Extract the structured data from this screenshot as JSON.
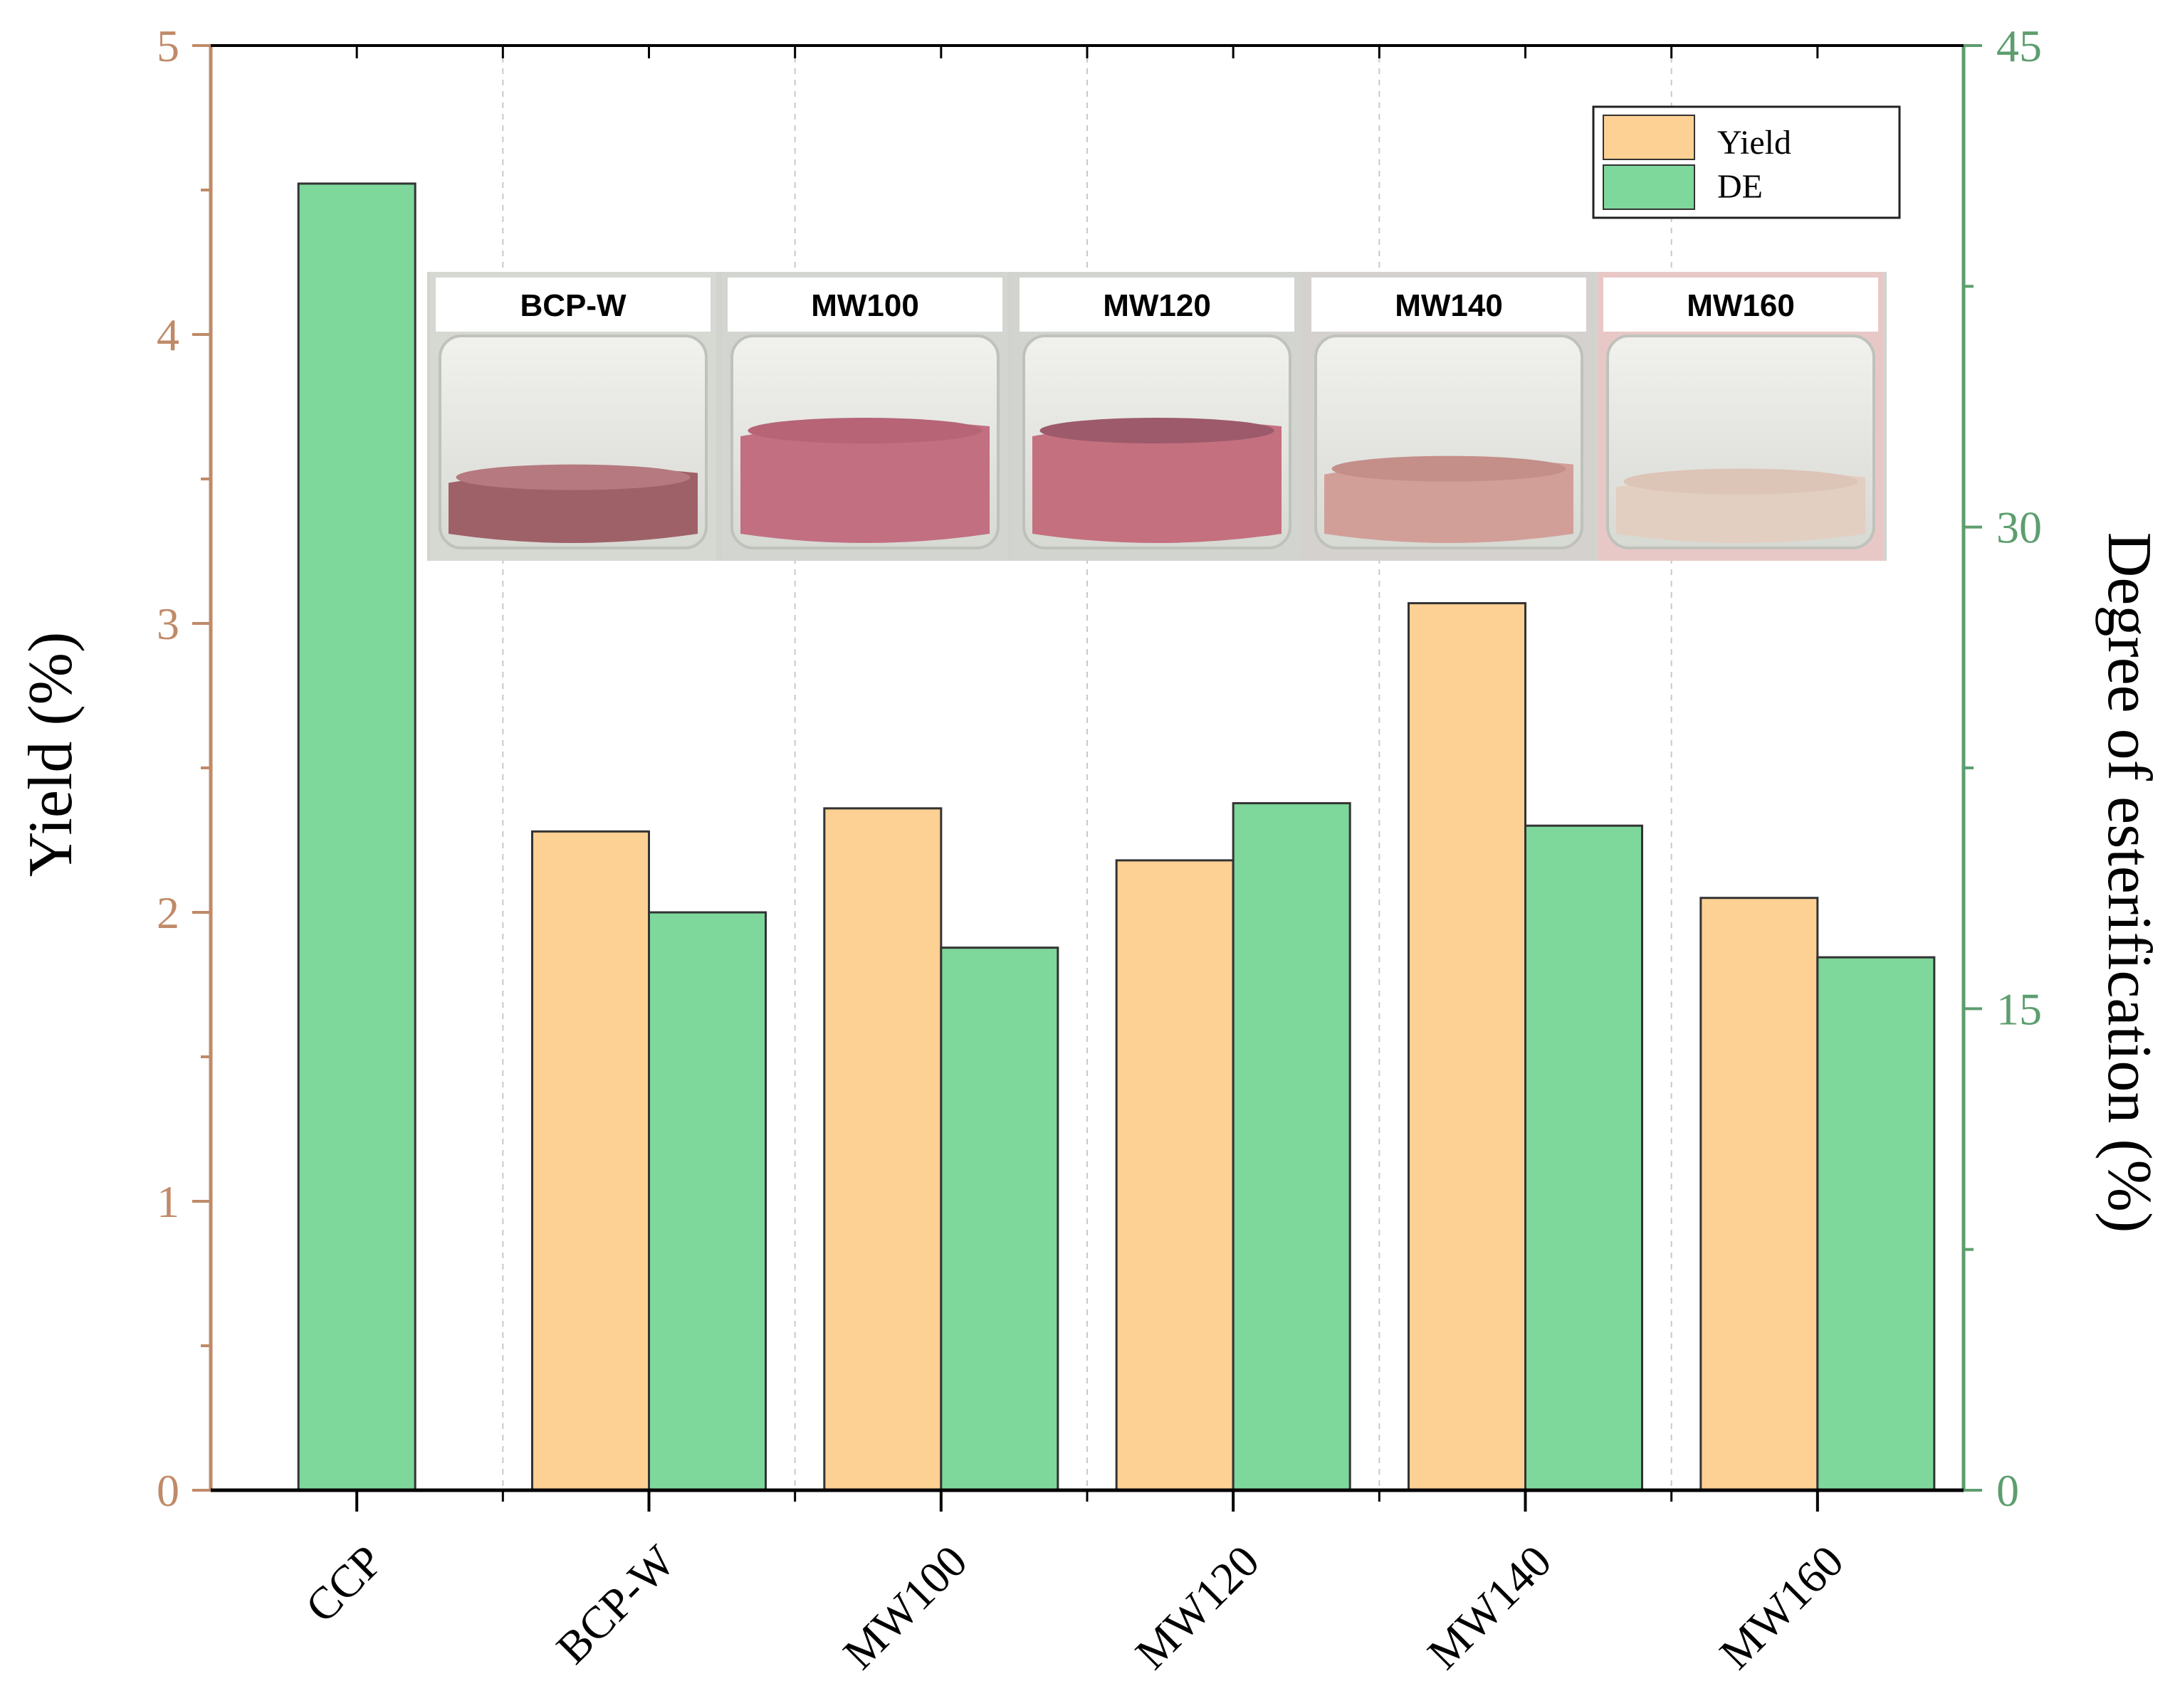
{
  "chart_data": {
    "type": "bar",
    "categories": [
      "CCP",
      "BCP-W",
      "MW100",
      "MW120",
      "MW140",
      "MW160"
    ],
    "series": [
      {
        "name": "Yield",
        "axis": "left",
        "values": [
          null,
          2.28,
          2.36,
          2.18,
          3.07,
          2.05
        ]
      },
      {
        "name": "DE",
        "axis": "right",
        "values": [
          40.7,
          18.0,
          16.9,
          21.4,
          20.7,
          16.6
        ]
      }
    ],
    "ylabel": "Yield (%)",
    "ylim": [
      0,
      5
    ],
    "yticks": [
      0,
      1,
      2,
      3,
      4,
      5
    ],
    "y2label": "Degree of esterification (%)",
    "y2lim": [
      0,
      45
    ],
    "y2ticks": [
      0,
      15,
      30,
      45
    ],
    "legend": [
      "Yield",
      "DE"
    ],
    "legend_position": "top-right",
    "inset_photo_labels": [
      "BCP-W",
      "MW100",
      "MW120",
      "MW140",
      "MW160"
    ]
  },
  "colors": {
    "yield": "#fdd093",
    "de": "#7ed79b",
    "left_axis": "#c08a68",
    "right_axis": "#5d9e6e"
  }
}
